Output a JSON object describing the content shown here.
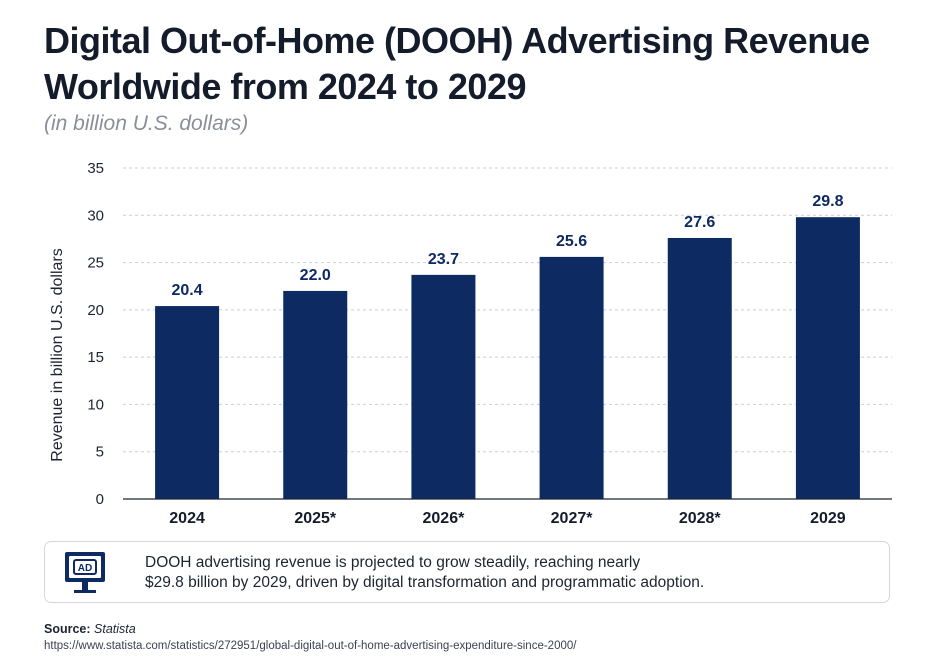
{
  "title": "Digital Out-of-Home (DOOH) Advertising Revenue Worldwide from 2024 to 2029",
  "subtitle": "(in billion U.S. dollars)",
  "chart_data": {
    "type": "bar",
    "categories": [
      "2024",
      "2025*",
      "2026*",
      "2027*",
      "2028*",
      "2029"
    ],
    "values": [
      20.4,
      22.0,
      23.7,
      25.6,
      27.6,
      29.8
    ],
    "value_labels": [
      "20.4",
      "22.0",
      "23.7",
      "25.6",
      "27.6",
      "29.8"
    ],
    "ylabel": "Revenue in billion U.S. dollars",
    "xlabel": "",
    "ylim": [
      0,
      35
    ],
    "yticks": [
      0,
      5,
      10,
      15,
      20,
      25,
      30,
      35
    ],
    "grid": true,
    "bar_color": "#0d2a63"
  },
  "note": {
    "icon": "ad-monitor-icon",
    "icon_label": "AD",
    "text_line1": "DOOH advertising revenue is projected to grow steadily, reaching nearly",
    "text_line2": "$29.8 billion by 2029, driven by digital transformation and programmatic adoption."
  },
  "source": {
    "label": "Source:",
    "name": "Statista",
    "url": "https://www.statista.com/statistics/272951/global-digital-out-of-home-advertising-expenditure-since-2000/"
  }
}
